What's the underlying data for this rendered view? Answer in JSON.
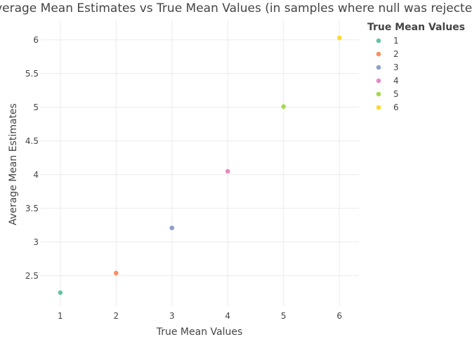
{
  "chart_data": {
    "type": "scatter",
    "title": "Average Mean Estimates vs True Mean Values (in samples where null was rejected)",
    "xlabel": "True Mean Values",
    "ylabel": "Average Mean Estimates",
    "xlim": [
      0.65,
      6.35
    ],
    "ylim": [
      2.05,
      6.3
    ],
    "x_ticks": [
      1,
      2,
      3,
      4,
      5,
      6
    ],
    "y_ticks": [
      2.5,
      3,
      3.5,
      4,
      4.5,
      5,
      5.5,
      6
    ],
    "x_tick_labels": [
      "1",
      "2",
      "3",
      "4",
      "5",
      "6"
    ],
    "y_tick_labels": [
      "2.5",
      "3",
      "3.5",
      "4",
      "4.5",
      "5",
      "5.5",
      "6"
    ],
    "grid": true,
    "legend": {
      "title": "True Mean Values",
      "position": "right",
      "entries": [
        "1",
        "2",
        "3",
        "4",
        "5",
        "6"
      ]
    },
    "series": [
      {
        "name": "1",
        "x": [
          1
        ],
        "y": [
          2.25
        ],
        "color": "#66c2a5"
      },
      {
        "name": "2",
        "x": [
          2
        ],
        "y": [
          2.54
        ],
        "color": "#fc8d62"
      },
      {
        "name": "3",
        "x": [
          3
        ],
        "y": [
          3.21
        ],
        "color": "#8da0cb"
      },
      {
        "name": "4",
        "x": [
          4
        ],
        "y": [
          4.05
        ],
        "color": "#e78ac3"
      },
      {
        "name": "5",
        "x": [
          5
        ],
        "y": [
          5.01
        ],
        "color": "#a6d854"
      },
      {
        "name": "6",
        "x": [
          6
        ],
        "y": [
          6.03
        ],
        "color": "#ffd92f"
      }
    ]
  }
}
